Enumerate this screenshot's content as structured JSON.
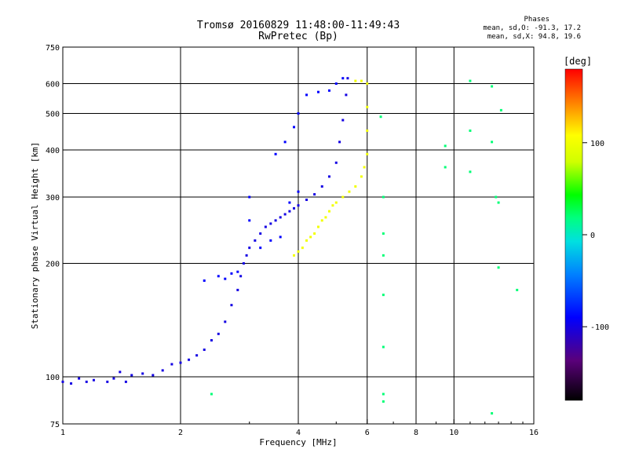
{
  "chart_data": {
    "type": "scatter",
    "title": "Tromsø 20160829 11:48:00-11:49:43",
    "subtitle": "RwPretec (Bp)",
    "xlabel": "Frequency [MHz]",
    "ylabel": "Stationary phase Virtual Height [km]",
    "x_scale": "log",
    "y_scale": "log",
    "xlim": [
      1,
      16
    ],
    "ylim": [
      75,
      750
    ],
    "x_ticks": [
      1,
      2,
      4,
      6,
      8,
      10,
      16
    ],
    "x_tick_labels": [
      "1",
      "2",
      "4",
      "6",
      "8",
      "10",
      "16"
    ],
    "x_gridlines": [
      2,
      4,
      6,
      8,
      10
    ],
    "y_ticks": [
      75,
      100,
      200,
      300,
      400,
      500,
      600,
      750
    ],
    "y_tick_labels": [
      "75",
      "100",
      "200",
      "300",
      "400",
      "500",
      "600",
      "750"
    ],
    "y_gridlines": [
      100,
      200,
      300,
      400,
      500,
      600
    ],
    "phases_box": {
      "heading": "Phases",
      "line_o": "mean, sd,O: -91.3, 17.2",
      "line_x": "mean, sd,X:  94.8, 19.6"
    },
    "colorbar": {
      "label": "[deg]",
      "range": [
        -180,
        180
      ],
      "ticks": [
        100,
        0,
        -100
      ],
      "tick_labels": [
        "100",
        "0",
        "-100"
      ]
    },
    "series": [
      {
        "name": "O-mode trace (blue)",
        "phase_deg": -100,
        "points": [
          [
            1.0,
            97
          ],
          [
            1.05,
            96
          ],
          [
            1.1,
            99
          ],
          [
            1.15,
            97
          ],
          [
            1.2,
            98
          ],
          [
            1.3,
            97
          ],
          [
            1.35,
            99
          ],
          [
            1.4,
            103
          ],
          [
            1.45,
            97
          ],
          [
            1.5,
            101
          ],
          [
            1.6,
            102
          ],
          [
            1.7,
            101
          ],
          [
            1.8,
            104
          ],
          [
            1.9,
            108
          ],
          [
            2.0,
            109
          ],
          [
            2.1,
            111
          ],
          [
            2.2,
            114
          ],
          [
            2.3,
            118
          ],
          [
            2.4,
            125
          ],
          [
            2.5,
            130
          ],
          [
            2.6,
            140
          ],
          [
            2.7,
            155
          ],
          [
            2.8,
            170
          ],
          [
            2.85,
            185
          ],
          [
            2.9,
            200
          ],
          [
            2.95,
            210
          ],
          [
            3.0,
            220
          ],
          [
            3.1,
            230
          ],
          [
            3.2,
            240
          ],
          [
            3.3,
            250
          ],
          [
            3.4,
            255
          ],
          [
            3.5,
            260
          ],
          [
            3.6,
            265
          ],
          [
            3.7,
            270
          ],
          [
            3.8,
            275
          ],
          [
            3.9,
            280
          ],
          [
            4.0,
            285
          ],
          [
            4.2,
            295
          ],
          [
            4.4,
            305
          ],
          [
            4.6,
            320
          ],
          [
            4.8,
            340
          ],
          [
            5.0,
            370
          ],
          [
            5.1,
            420
          ],
          [
            5.2,
            480
          ],
          [
            5.3,
            560
          ],
          [
            5.35,
            620
          ]
        ]
      },
      {
        "name": "O-mode upper branch (blue)",
        "phase_deg": -90,
        "points": [
          [
            2.3,
            180
          ],
          [
            2.5,
            185
          ],
          [
            2.6,
            182
          ],
          [
            2.7,
            188
          ],
          [
            2.8,
            190
          ],
          [
            3.0,
            260
          ],
          [
            3.0,
            300
          ],
          [
            3.2,
            220
          ],
          [
            3.4,
            230
          ],
          [
            3.6,
            235
          ],
          [
            3.8,
            290
          ],
          [
            4.0,
            310
          ],
          [
            3.5,
            390
          ],
          [
            3.7,
            420
          ],
          [
            3.9,
            460
          ],
          [
            4.0,
            500
          ],
          [
            4.2,
            560
          ],
          [
            4.5,
            570
          ],
          [
            4.8,
            575
          ],
          [
            5.0,
            600
          ],
          [
            5.2,
            620
          ]
        ]
      },
      {
        "name": "X-mode trace (yellow)",
        "phase_deg": 100,
        "points": [
          [
            3.9,
            210
          ],
          [
            4.0,
            215
          ],
          [
            4.1,
            220
          ],
          [
            4.2,
            230
          ],
          [
            4.3,
            235
          ],
          [
            4.4,
            240
          ],
          [
            4.5,
            250
          ],
          [
            4.6,
            260
          ],
          [
            4.7,
            265
          ],
          [
            4.8,
            275
          ],
          [
            4.9,
            285
          ],
          [
            5.0,
            290
          ],
          [
            5.2,
            300
          ],
          [
            5.4,
            310
          ],
          [
            5.6,
            320
          ],
          [
            5.8,
            340
          ],
          [
            5.9,
            360
          ],
          [
            6.0,
            390
          ],
          [
            6.0,
            450
          ],
          [
            6.0,
            520
          ],
          [
            6.0,
            600
          ],
          [
            5.8,
            610
          ],
          [
            5.6,
            610
          ]
        ]
      },
      {
        "name": "Scattered points",
        "phase_deg": 20,
        "points": [
          [
            6.5,
            490
          ],
          [
            6.6,
            300
          ],
          [
            6.6,
            240
          ],
          [
            6.6,
            210
          ],
          [
            6.6,
            165
          ],
          [
            6.6,
            120
          ],
          [
            6.6,
            90
          ],
          [
            6.6,
            86
          ],
          [
            9.5,
            410
          ],
          [
            9.5,
            360
          ],
          [
            11.0,
            610
          ],
          [
            11.0,
            450
          ],
          [
            11.0,
            350
          ],
          [
            12.5,
            590
          ],
          [
            12.5,
            420
          ],
          [
            12.8,
            300
          ],
          [
            13.0,
            290
          ],
          [
            13.2,
            510
          ],
          [
            13.0,
            195
          ],
          [
            14.5,
            170
          ],
          [
            12.5,
            80
          ],
          [
            2.4,
            90
          ]
        ]
      }
    ]
  }
}
